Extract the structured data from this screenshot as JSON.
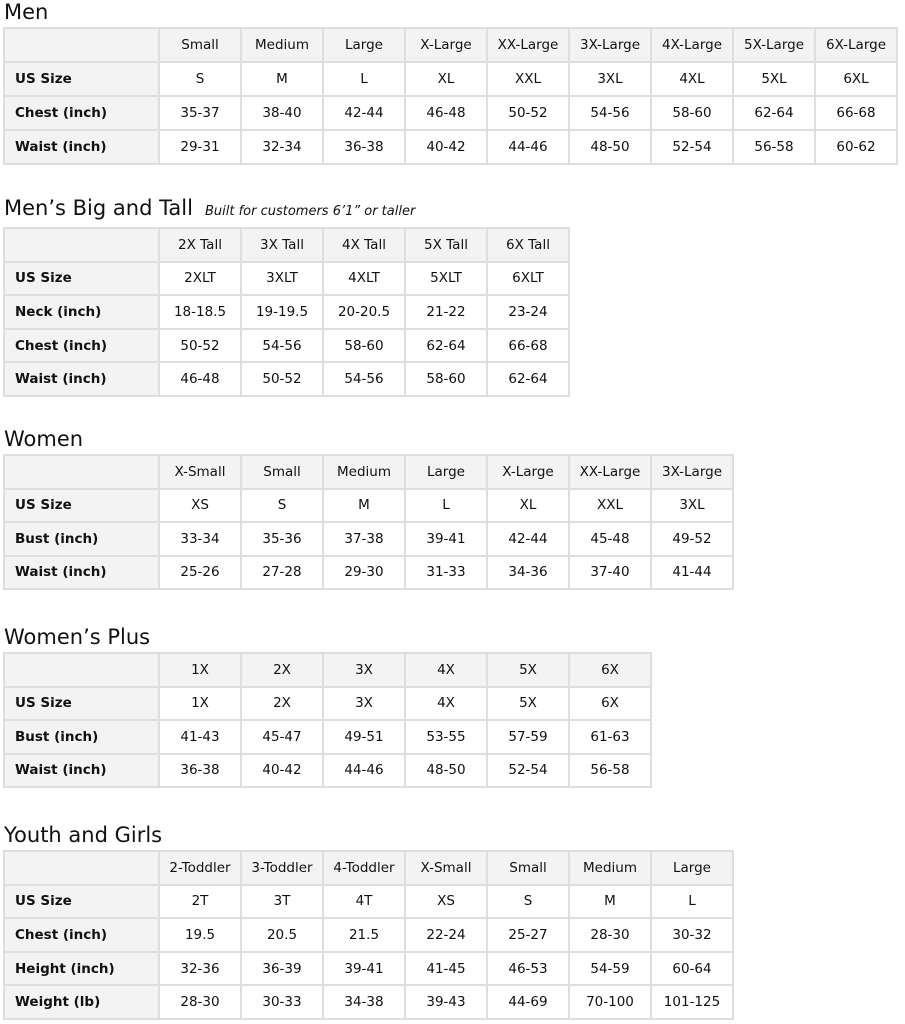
{
  "sections": [
    {
      "title": "Men",
      "subtitle": "",
      "headers": [
        "Small",
        "Medium",
        "Large",
        "X-Large",
        "XX-Large",
        "3X-Large",
        "4X-Large",
        "5X-Large",
        "6X-Large"
      ],
      "rows": [
        {
          "label": "US Size",
          "values": [
            "S",
            "M",
            "L",
            "XL",
            "XXL",
            "3XL",
            "4XL",
            "5XL",
            "6XL"
          ]
        },
        {
          "label": "Chest (inch)",
          "values": [
            "35-37",
            "38-40",
            "42-44",
            "46-48",
            "50-52",
            "54-56",
            "58-60",
            "62-64",
            "66-68"
          ]
        },
        {
          "label": "Waist (inch)",
          "values": [
            "29-31",
            "32-34",
            "36-38",
            "40-42",
            "44-46",
            "48-50",
            "52-54",
            "56-58",
            "60-62"
          ]
        }
      ]
    },
    {
      "title": "Men’s Big and Tall",
      "subtitle": "Built for customers 6’1” or taller",
      "headers": [
        "2X Tall",
        "3X Tall",
        "4X Tall",
        "5X Tall",
        "6X Tall"
      ],
      "rows": [
        {
          "label": "US Size",
          "values": [
            "2XLT",
            "3XLT",
            "4XLT",
            "5XLT",
            "6XLT"
          ]
        },
        {
          "label": "Neck (inch)",
          "values": [
            "18-18.5",
            "19-19.5",
            "20-20.5",
            "21-22",
            "23-24"
          ]
        },
        {
          "label": "Chest (inch)",
          "values": [
            "50-52",
            "54-56",
            "58-60",
            "62-64",
            "66-68"
          ]
        },
        {
          "label": "Waist (inch)",
          "values": [
            "46-48",
            "50-52",
            "54-56",
            "58-60",
            "62-64"
          ]
        }
      ]
    },
    {
      "title": "Women",
      "subtitle": "",
      "headers": [
        "X-Small",
        "Small",
        "Medium",
        "Large",
        "X-Large",
        "XX-Large",
        "3X-Large"
      ],
      "rows": [
        {
          "label": "US Size",
          "values": [
            "XS",
            "S",
            "M",
            "L",
            "XL",
            "XXL",
            "3XL"
          ]
        },
        {
          "label": "Bust (inch)",
          "values": [
            "33-34",
            "35-36",
            "37-38",
            "39-41",
            "42-44",
            "45-48",
            "49-52"
          ]
        },
        {
          "label": "Waist (inch)",
          "values": [
            "25-26",
            "27-28",
            "29-30",
            "31-33",
            "34-36",
            "37-40",
            "41-44"
          ]
        }
      ]
    },
    {
      "title": "Women’s  Plus",
      "subtitle": "",
      "headers": [
        "1X",
        "2X",
        "3X",
        "4X",
        "5X",
        "6X"
      ],
      "rows": [
        {
          "label": "US Size",
          "values": [
            "1X",
            "2X",
            "3X",
            "4X",
            "5X",
            "6X"
          ]
        },
        {
          "label": "Bust (inch)",
          "values": [
            "41-43",
            "45-47",
            "49-51",
            "53-55",
            "57-59",
            "61-63"
          ]
        },
        {
          "label": "Waist (inch)",
          "values": [
            "36-38",
            "40-42",
            "44-46",
            "48-50",
            "52-54",
            "56-58"
          ]
        }
      ]
    },
    {
      "title": "Youth and Girls",
      "subtitle": "",
      "headers": [
        "2-Toddler",
        "3-Toddler",
        "4-Toddler",
        "X-Small",
        "Small",
        "Medium",
        "Large"
      ],
      "rows": [
        {
          "label": "US Size",
          "values": [
            "2T",
            "3T",
            "4T",
            "XS",
            "S",
            "M",
            "L"
          ]
        },
        {
          "label": "Chest (inch)",
          "values": [
            "19.5",
            "20.5",
            "21.5",
            "22-24",
            "25-27",
            "28-30",
            "30-32"
          ]
        },
        {
          "label": "Height (inch)",
          "values": [
            "32-36",
            "36-39",
            "39-41",
            "41-45",
            "46-53",
            "54-59",
            "60-64"
          ]
        },
        {
          "label": "Weight (lb)",
          "values": [
            "28-30",
            "30-33",
            "34-38",
            "39-43",
            "44-69",
            "70-100",
            "101-125"
          ]
        }
      ]
    }
  ]
}
